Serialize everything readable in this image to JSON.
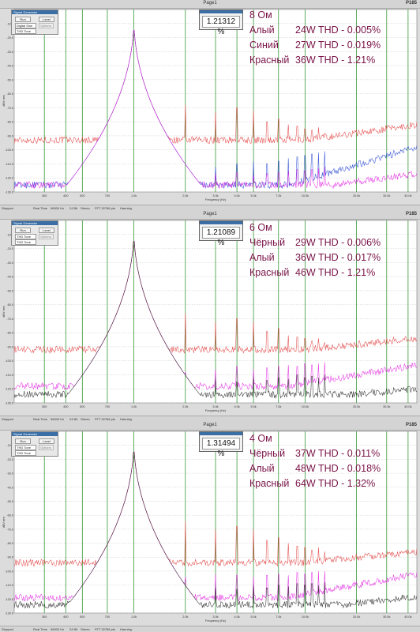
{
  "window": {
    "title_8": "Page1",
    "title_6": "Page1",
    "title_4": "Page1",
    "brand": "P185"
  },
  "generator": {
    "title": "Signal Generator",
    "run_label": "Run",
    "level_label": "Level",
    "mode_label": "Digital Sine",
    "tone_label": "THD Tone",
    "opt_label": "Options"
  },
  "statusbar": {
    "stopped": "Stopped",
    "realtime": "Real Time",
    "rate": "96000 Hz",
    "bits": "24 Bit",
    "mono": "Stereo",
    "fft": "FFT 32768 pts",
    "window": "Hanning"
  },
  "axis": {
    "xlabel": "Frequency (Hz)",
    "ylabel": "dBV rms"
  },
  "colors": {
    "red": "#e03a3a",
    "pink": "#e020e0",
    "blue": "#2040d0",
    "black": "#202020",
    "legend": "#7a1448",
    "grid_green": "#1a8a1a"
  },
  "chart_data": [
    {
      "type": "line",
      "title": "8 Ом",
      "thd_reading": "1.21312 %",
      "legend": [
        {
          "name": "Алый",
          "text": "24W THD - 0.005%"
        },
        {
          "name": "Синий",
          "text": "27W THD - 0.019%"
        },
        {
          "name": "Красный",
          "text": "36W THD - 1.21%"
        }
      ],
      "x_scale": "log",
      "xlim": [
        200,
        45000
      ],
      "x_ticks": [
        "300",
        "400",
        "500",
        "700",
        "1.0k",
        "2.0k",
        "3.0k",
        "4.0k",
        "5.0k",
        "7.0k",
        "10.0k",
        "20.0k",
        "30.0k",
        "40.0k"
      ],
      "y_ticks": [
        "-10.0",
        "-20.0",
        "-30.0",
        "-40.0",
        "-50.0",
        "-60.0",
        "-70.0",
        "-80.0",
        "-90.0",
        "-100.0",
        "-110.0",
        "-120.0",
        "-130.0"
      ],
      "ylim": [
        -130,
        0
      ],
      "fundamental_hz": 1000,
      "series": [
        {
          "name": "Красный",
          "color": "red",
          "floor_start": -93,
          "floor_end": -82,
          "rise_from_hz": 10000,
          "harmonics": [
            -68,
            -73,
            -70,
            -72,
            -80,
            -78,
            -82,
            -83,
            -85,
            -86,
            -84,
            -88
          ]
        },
        {
          "name": "Синий",
          "color": "blue",
          "floor_start": -125,
          "floor_end": -98,
          "rise_from_hz": 8000,
          "harmonics": [
            -115,
            -112,
            -110,
            -108,
            -110,
            -108,
            -106,
            -105,
            -104,
            -103,
            -102,
            -101
          ]
        },
        {
          "name": "Алый",
          "color": "pink",
          "floor_start": -125,
          "floor_end": -117,
          "rise_from_hz": 15000,
          "harmonics": [
            -118,
            -117,
            -116,
            -118,
            -117,
            -116,
            -115,
            -114,
            -115,
            -114,
            -113,
            -112
          ]
        }
      ]
    },
    {
      "type": "line",
      "title": "6 Ом",
      "thd_reading": "1.21089 %",
      "legend": [
        {
          "name": "Чёрный",
          "text": "29W THD - 0.006%"
        },
        {
          "name": "Алый",
          "text": "36W THD - 0.017%"
        },
        {
          "name": "Красный",
          "text": "46W THD - 1.21%"
        }
      ],
      "x_scale": "log",
      "xlim": [
        200,
        45000
      ],
      "x_ticks": [
        "300",
        "400",
        "500",
        "700",
        "1.0k",
        "2.0k",
        "3.0k",
        "4.0k",
        "5.0k",
        "7.0k",
        "10.0k",
        "20.0k",
        "30.0k",
        "40.0k"
      ],
      "y_ticks": [
        "-10.0",
        "-20.0",
        "-30.0",
        "-40.0",
        "-50.0",
        "-60.0",
        "-70.0",
        "-80.0",
        "-90.0",
        "-100.0",
        "-110.0",
        "-120.0",
        "-130.0"
      ],
      "ylim": [
        -130,
        0
      ],
      "fundamental_hz": 1000,
      "series": [
        {
          "name": "Красный",
          "color": "red",
          "floor_start": -92,
          "floor_end": -84,
          "rise_from_hz": 10000,
          "harmonics": [
            -66,
            -72,
            -70,
            -72,
            -79,
            -77,
            -82,
            -83,
            -84,
            -86,
            -84,
            -87
          ]
        },
        {
          "name": "Алый",
          "color": "pink",
          "floor_start": -118,
          "floor_end": -103,
          "rise_from_hz": 8000,
          "harmonics": [
            -108,
            -106,
            -104,
            -106,
            -105,
            -104,
            -103,
            -104,
            -102,
            -103,
            -102,
            -101
          ]
        },
        {
          "name": "Чёрный",
          "color": "black",
          "floor_start": -124,
          "floor_end": -120,
          "rise_from_hz": 20000,
          "harmonics": [
            -116,
            -114,
            -115,
            -113,
            -114,
            -112,
            -113,
            -110,
            -112,
            -111,
            -112,
            -110
          ]
        }
      ]
    },
    {
      "type": "line",
      "title": "4 Ом",
      "thd_reading": "1.31494 %",
      "legend": [
        {
          "name": "Чёрный",
          "text": "37W THD - 0.011%"
        },
        {
          "name": "Алый",
          "text": "48W THD - 0.018%"
        },
        {
          "name": "Красный",
          "text": "64W THD - 1.32%"
        }
      ],
      "x_scale": "log",
      "xlim": [
        200,
        45000
      ],
      "x_ticks": [
        "300",
        "400",
        "500",
        "700",
        "1.0k",
        "2.0k",
        "3.0k",
        "4.0k",
        "5.0k",
        "7.0k",
        "10.0k",
        "20.0k",
        "30.0k",
        "40.0k"
      ],
      "y_ticks": [
        "-10.0",
        "-20.0",
        "-30.0",
        "-40.0",
        "-50.0",
        "-60.0",
        "-70.0",
        "-80.0",
        "-90.0",
        "-100.0",
        "-110.0",
        "-120.0",
        "-130.0"
      ],
      "ylim": [
        -130,
        0
      ],
      "fundamental_hz": 1000,
      "series": [
        {
          "name": "Красный",
          "color": "red",
          "floor_start": -94,
          "floor_end": -86,
          "rise_from_hz": 10000,
          "harmonics": [
            -64,
            -70,
            -68,
            -70,
            -78,
            -76,
            -80,
            -82,
            -83,
            -85,
            -83,
            -86
          ]
        },
        {
          "name": "Алый",
          "color": "pink",
          "floor_start": -119,
          "floor_end": -102,
          "rise_from_hz": 8000,
          "harmonics": [
            -104,
            -102,
            -103,
            -104,
            -103,
            -102,
            -103,
            -101,
            -102,
            -101,
            -100,
            -100
          ]
        },
        {
          "name": "Чёрный",
          "color": "black",
          "floor_start": -124,
          "floor_end": -118,
          "rise_from_hz": 18000,
          "harmonics": [
            -114,
            -112,
            -113,
            -111,
            -112,
            -110,
            -111,
            -109,
            -110,
            -109,
            -110,
            -108
          ]
        }
      ]
    }
  ]
}
